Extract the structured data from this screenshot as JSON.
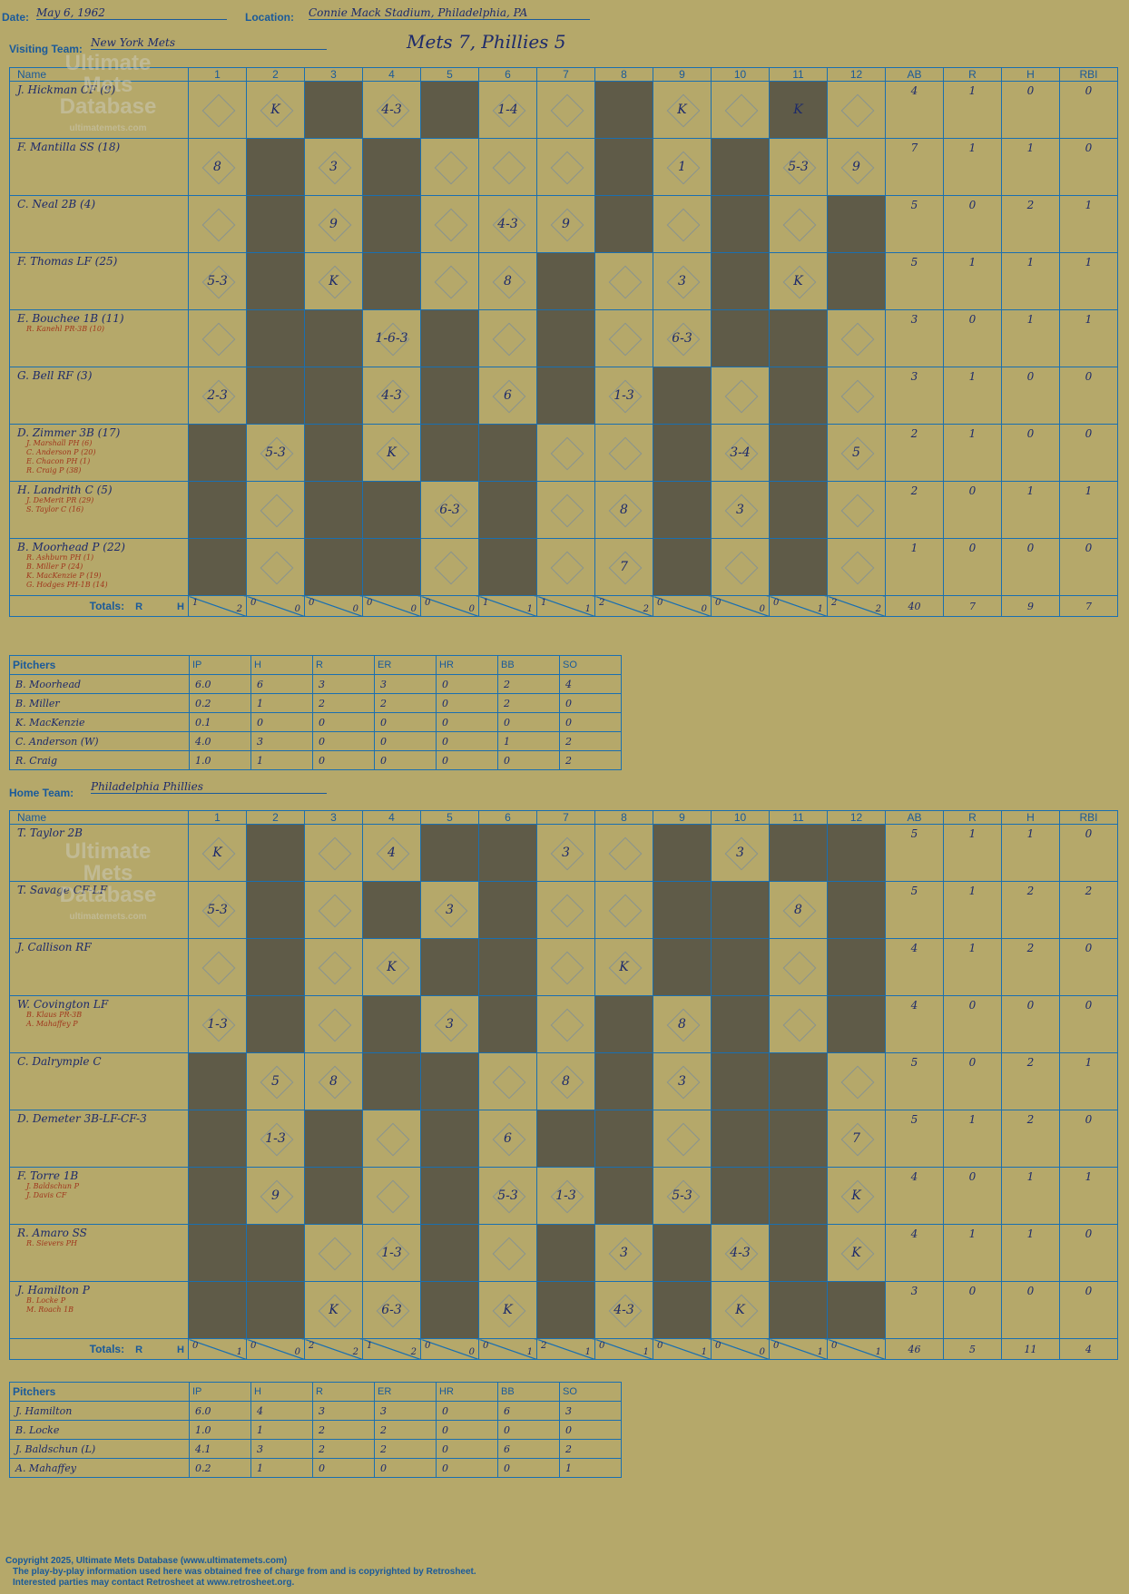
{
  "header": {
    "date_label": "Date:",
    "date": "May 6, 1962",
    "location_label": "Location:",
    "location": "Connie Mack Stadium, Philadelphia, PA",
    "visiting_label": "Visiting Team:",
    "visiting_team": "New York Mets",
    "result": "Mets 7, Phillies 5",
    "home_label": "Home Team:",
    "home_team": "Philadelphia Phillies"
  },
  "columns": {
    "name": "Name",
    "innings": [
      "1",
      "2",
      "3",
      "4",
      "5",
      "6",
      "7",
      "8",
      "9",
      "10",
      "11",
      "12"
    ],
    "stats": [
      "AB",
      "R",
      "H",
      "RBI"
    ]
  },
  "totals_label": "Totals:",
  "rh_label": [
    "R",
    "H"
  ],
  "pitchers_header": [
    "Pitchers",
    "IP",
    "H",
    "R",
    "ER",
    "HR",
    "BB",
    "SO"
  ],
  "watermark": {
    "line1": "Ultimate",
    "line2": "Mets",
    "line3": "Database",
    "line4": "ultimatemets.com"
  },
  "visitor": {
    "batters": [
      {
        "name": "J. Hickman CF (9)",
        "subs": [],
        "stats": [
          "4",
          "1",
          "0",
          "0"
        ],
        "cells": [
          "",
          "K",
          "",
          "4-3",
          "",
          "1-4",
          "",
          "",
          "K",
          "",
          "K",
          ""
        ]
      },
      {
        "name": "F. Mantilla SS (18)",
        "subs": [],
        "stats": [
          "7",
          "1",
          "1",
          "0"
        ],
        "cells": [
          "8",
          "",
          "3",
          "",
          "",
          "",
          "",
          "",
          "1",
          "",
          "5-3",
          "9"
        ]
      },
      {
        "name": "C. Neal 2B (4)",
        "subs": [],
        "stats": [
          "5",
          "0",
          "2",
          "1"
        ],
        "cells": [
          "",
          "",
          "9",
          "",
          "",
          "4-3",
          "9",
          "",
          "",
          "",
          "",
          ""
        ]
      },
      {
        "name": "F. Thomas LF (25)",
        "subs": [],
        "stats": [
          "5",
          "1",
          "1",
          "1"
        ],
        "cells": [
          "5-3",
          "",
          "K",
          "",
          "",
          "8",
          "",
          "",
          "3",
          "",
          "K",
          ""
        ]
      },
      {
        "name": "E. Bouchee 1B (11)",
        "subs": [
          "R. Kanehl PR-3B (10)"
        ],
        "stats": [
          "3",
          "0",
          "1",
          "1"
        ],
        "cells": [
          "",
          "",
          "",
          "1-6-3",
          "",
          "",
          "",
          "",
          "6-3",
          "",
          "",
          ""
        ]
      },
      {
        "name": "G. Bell RF (3)",
        "subs": [],
        "stats": [
          "3",
          "1",
          "0",
          "0"
        ],
        "cells": [
          "2-3",
          "",
          "",
          "4-3",
          "",
          "6",
          "",
          "1-3",
          "",
          "",
          "",
          ""
        ]
      },
      {
        "name": "D. Zimmer 3B (17)",
        "subs": [
          "J. Marshall PH (6)",
          "C. Anderson P (20)",
          "E. Chacon PH (1)",
          "R. Craig P (38)"
        ],
        "stats": [
          "2",
          "1",
          "0",
          "0"
        ],
        "cells": [
          "",
          "5-3",
          "",
          "K",
          "",
          "",
          "",
          "",
          "",
          "3-4",
          "",
          "5"
        ]
      },
      {
        "name": "H. Landrith C (5)",
        "subs": [
          "J. DeMerit PR (29)",
          "S. Taylor C (16)"
        ],
        "stats": [
          "2",
          "0",
          "1",
          "1"
        ],
        "cells": [
          "",
          "",
          "",
          "",
          "6-3",
          "",
          "",
          "8",
          "",
          "3",
          "",
          ""
        ]
      },
      {
        "name": "B. Moorhead P (22)",
        "subs": [
          "R. Ashburn PH (1)",
          "B. Miller P (24)",
          "K. MacKenzie P (19)",
          "G. Hodges PH-1B (14)"
        ],
        "stats": [
          "1",
          "0",
          "0",
          "0"
        ],
        "cells": [
          "",
          "",
          "",
          "",
          "",
          "",
          "",
          "7",
          "",
          "",
          "",
          ""
        ]
      }
    ],
    "dark": [
      [
        0,
        0,
        1,
        0,
        1,
        0,
        0,
        1,
        0,
        0,
        1,
        0
      ],
      [
        0,
        1,
        0,
        1,
        0,
        0,
        0,
        1,
        0,
        1,
        0,
        0
      ],
      [
        0,
        1,
        0,
        1,
        0,
        0,
        0,
        1,
        0,
        1,
        0,
        1
      ],
      [
        0,
        1,
        0,
        1,
        0,
        0,
        1,
        0,
        0,
        1,
        0,
        1
      ],
      [
        0,
        1,
        1,
        0,
        1,
        0,
        1,
        0,
        0,
        1,
        1,
        0
      ],
      [
        0,
        1,
        1,
        0,
        1,
        0,
        1,
        0,
        1,
        0,
        1,
        0
      ],
      [
        1,
        0,
        1,
        0,
        1,
        1,
        0,
        0,
        1,
        0,
        1,
        0
      ],
      [
        1,
        0,
        1,
        1,
        0,
        1,
        0,
        0,
        1,
        0,
        1,
        0
      ],
      [
        1,
        0,
        1,
        1,
        0,
        1,
        0,
        0,
        1,
        0,
        1,
        0
      ]
    ],
    "totals": [
      [
        "1",
        "2"
      ],
      [
        "0",
        "0"
      ],
      [
        "0",
        "0"
      ],
      [
        "0",
        "0"
      ],
      [
        "0",
        "0"
      ],
      [
        "1",
        "1"
      ],
      [
        "1",
        "1"
      ],
      [
        "2",
        "2"
      ],
      [
        "0",
        "0"
      ],
      [
        "0",
        "0"
      ],
      [
        "0",
        "1"
      ],
      [
        "2",
        "2"
      ]
    ],
    "total_stats": [
      "40",
      "7",
      "9",
      "7"
    ],
    "pitchers": [
      [
        "B. Moorhead",
        "6.0",
        "6",
        "3",
        "3",
        "0",
        "2",
        "4"
      ],
      [
        "B. Miller",
        "0.2",
        "1",
        "2",
        "2",
        "0",
        "2",
        "0"
      ],
      [
        "K. MacKenzie",
        "0.1",
        "0",
        "0",
        "0",
        "0",
        "0",
        "0"
      ],
      [
        "C. Anderson (W)",
        "4.0",
        "3",
        "0",
        "0",
        "0",
        "1",
        "2"
      ],
      [
        "R. Craig",
        "1.0",
        "1",
        "0",
        "0",
        "0",
        "0",
        "2"
      ]
    ]
  },
  "home": {
    "batters": [
      {
        "name": "T. Taylor 2B",
        "subs": [],
        "stats": [
          "5",
          "1",
          "1",
          "0"
        ],
        "cells": [
          "K",
          "",
          "",
          "4",
          "",
          "",
          "3",
          "",
          "",
          "3",
          "",
          ""
        ]
      },
      {
        "name": "T. Savage CF-LF",
        "subs": [],
        "stats": [
          "5",
          "1",
          "2",
          "2"
        ],
        "cells": [
          "5-3",
          "",
          "",
          "",
          "3",
          "",
          "",
          "",
          "",
          "",
          "8",
          ""
        ]
      },
      {
        "name": "J. Callison RF",
        "subs": [],
        "stats": [
          "4",
          "1",
          "2",
          "0"
        ],
        "cells": [
          "",
          "",
          "",
          "K",
          "",
          "",
          "",
          "K",
          "",
          "",
          "",
          ""
        ]
      },
      {
        "name": "W. Covington LF",
        "subs": [
          "B. Klaus PR-3B",
          "A. Mahaffey P"
        ],
        "stats": [
          "4",
          "0",
          "0",
          "0"
        ],
        "cells": [
          "1-3",
          "",
          "",
          "",
          "3",
          "",
          "",
          "",
          "8",
          "",
          "",
          ""
        ]
      },
      {
        "name": "C. Dalrymple C",
        "subs": [],
        "stats": [
          "5",
          "0",
          "2",
          "1"
        ],
        "cells": [
          "",
          "5",
          "8",
          "",
          "",
          "",
          "8",
          "",
          "3",
          "",
          "",
          ""
        ]
      },
      {
        "name": "D. Demeter 3B-LF-CF-3",
        "subs": [],
        "stats": [
          "5",
          "1",
          "2",
          "0"
        ],
        "cells": [
          "",
          "1-3",
          "",
          "",
          "",
          "6",
          "",
          "",
          "",
          "",
          "",
          "7"
        ]
      },
      {
        "name": "F. Torre 1B",
        "subs": [
          "J. Baldschun P",
          "J. Davis CF"
        ],
        "stats": [
          "4",
          "0",
          "1",
          "1"
        ],
        "cells": [
          "",
          "9",
          "",
          "",
          "",
          "5-3",
          "1-3",
          "",
          "5-3",
          "",
          "",
          "K"
        ]
      },
      {
        "name": "R. Amaro SS",
        "subs": [
          "R. Sievers PH"
        ],
        "stats": [
          "4",
          "1",
          "1",
          "0"
        ],
        "cells": [
          "",
          "",
          "",
          "1-3",
          "",
          "",
          "",
          "3",
          "",
          "4-3",
          "",
          "K"
        ]
      },
      {
        "name": "J. Hamilton P",
        "subs": [
          "B. Locke P",
          "M. Roach 1B"
        ],
        "stats": [
          "3",
          "0",
          "0",
          "0"
        ],
        "cells": [
          "",
          "",
          "K",
          "6-3",
          "",
          "K",
          "",
          "4-3",
          "",
          "K",
          "",
          ""
        ]
      }
    ],
    "dark": [
      [
        0,
        1,
        0,
        0,
        1,
        1,
        0,
        0,
        1,
        0,
        1,
        1
      ],
      [
        0,
        1,
        0,
        1,
        0,
        1,
        0,
        0,
        1,
        1,
        0,
        1
      ],
      [
        0,
        1,
        0,
        0,
        1,
        1,
        0,
        0,
        1,
        1,
        0,
        1
      ],
      [
        0,
        1,
        0,
        1,
        0,
        1,
        0,
        1,
        0,
        1,
        0,
        1
      ],
      [
        1,
        0,
        0,
        1,
        1,
        0,
        0,
        1,
        0,
        1,
        1,
        0
      ],
      [
        1,
        0,
        1,
        0,
        1,
        0,
        1,
        1,
        0,
        1,
        1,
        0
      ],
      [
        1,
        0,
        1,
        0,
        1,
        0,
        0,
        1,
        0,
        1,
        1,
        0
      ],
      [
        1,
        1,
        0,
        0,
        1,
        0,
        1,
        0,
        1,
        0,
        1,
        0
      ],
      [
        1,
        1,
        0,
        0,
        1,
        0,
        1,
        0,
        1,
        0,
        1,
        1
      ]
    ],
    "totals": [
      [
        "0",
        "1"
      ],
      [
        "0",
        "0"
      ],
      [
        "2",
        "2"
      ],
      [
        "1",
        "2"
      ],
      [
        "0",
        "0"
      ],
      [
        "0",
        "1"
      ],
      [
        "2",
        "1"
      ],
      [
        "0",
        "1"
      ],
      [
        "0",
        "1"
      ],
      [
        "0",
        "0"
      ],
      [
        "0",
        "1"
      ],
      [
        "0",
        "1"
      ]
    ],
    "total_stats": [
      "46",
      "5",
      "11",
      "4"
    ],
    "pitchers": [
      [
        "J. Hamilton",
        "6.0",
        "4",
        "3",
        "3",
        "0",
        "6",
        "3"
      ],
      [
        "B. Locke",
        "1.0",
        "1",
        "2",
        "2",
        "0",
        "0",
        "0"
      ],
      [
        "J. Baldschun (L)",
        "4.1",
        "3",
        "2",
        "2",
        "0",
        "6",
        "2"
      ],
      [
        "A. Mahaffey",
        "0.2",
        "1",
        "0",
        "0",
        "0",
        "0",
        "1"
      ]
    ]
  },
  "footer": {
    "line1": "Copyright 2025, Ultimate Mets Database (www.ultimatemets.com)",
    "line2": "The play-by-play information used here was obtained free of charge from and is copyrighted by Retrosheet.",
    "line3": "Interested parties may contact Retrosheet at www.retrosheet.org."
  }
}
